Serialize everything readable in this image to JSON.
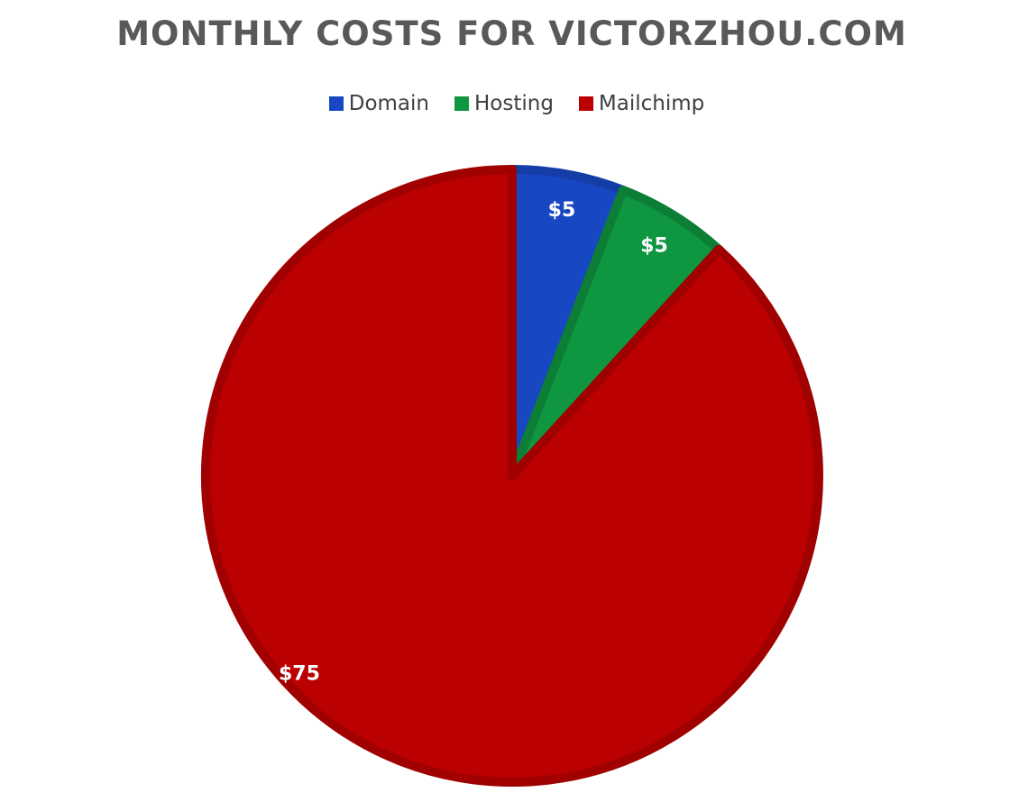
{
  "chart_data": {
    "type": "pie",
    "title": "MONTHLY COSTS FOR VICTORZHOU.COM",
    "legend_position": "top",
    "slices": [
      {
        "name": "Domain",
        "value": 5,
        "label": "$5",
        "color": "#1847C4",
        "border": "#143DA8"
      },
      {
        "name": "Hosting",
        "value": 5,
        "label": "$5",
        "color": "#0E9640",
        "border": "#0C7E36"
      },
      {
        "name": "Mailchimp",
        "value": 75,
        "label": "$75",
        "color": "#BA0000",
        "border": "#A00000"
      }
    ]
  }
}
